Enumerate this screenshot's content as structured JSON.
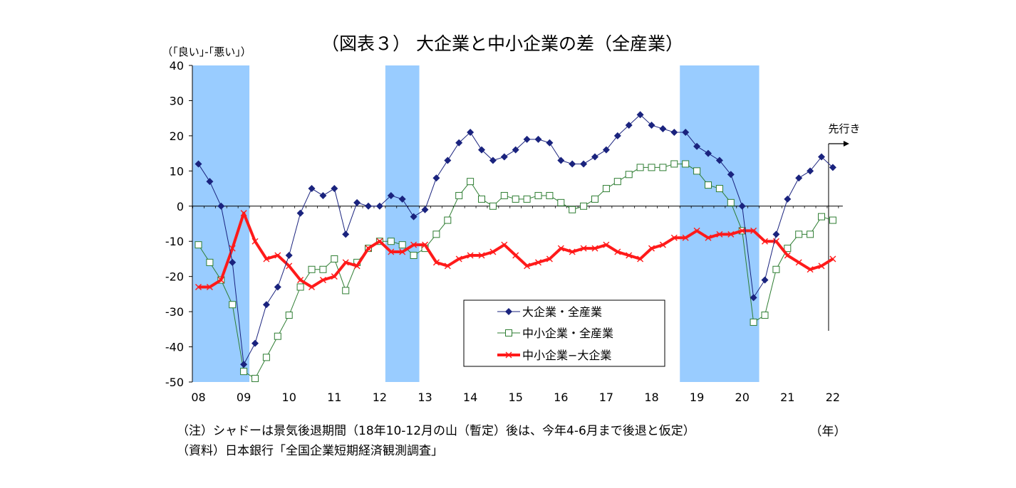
{
  "chart_data": {
    "type": "line",
    "title": "（図表３） 大企業と中小企業の差（全産業）",
    "ylabel": "（｢良い｣-｢悪い｣）",
    "xlabel": "（年）",
    "ylim": [
      -50,
      40
    ],
    "yticks": [
      40,
      30,
      20,
      10,
      0,
      -10,
      -20,
      -30,
      -40,
      -50
    ],
    "x_tick_labels": [
      "08",
      "09",
      "10",
      "11",
      "12",
      "13",
      "14",
      "15",
      "16",
      "17",
      "18",
      "19",
      "20",
      "21",
      "22"
    ],
    "x_start_year": 2008,
    "quarters_per_year": 4,
    "recession_shading": [
      {
        "start": "2008-Q1",
        "end": "2009-Q1"
      },
      {
        "start": "2012-Q2",
        "end": "2012-Q4"
      },
      {
        "start": "2018-Q4",
        "end": "2020-Q2"
      }
    ],
    "forecast_label": "先行き",
    "grid": false,
    "legend_position": "lower-center",
    "series": [
      {
        "name": "大企業・全産業",
        "color": "#1a237e",
        "marker": "diamond",
        "values": [
          12,
          7,
          0,
          -16,
          -45,
          -39,
          -28,
          -23,
          -14,
          -2,
          5,
          3,
          5,
          -8,
          1,
          0,
          0,
          3,
          2,
          -3,
          -1,
          8,
          13,
          18,
          21,
          16,
          13,
          14,
          16,
          19,
          19,
          18,
          13,
          12,
          12,
          14,
          16,
          20,
          23,
          26,
          23,
          22,
          21,
          21,
          17,
          15,
          13,
          9,
          0,
          -26,
          -21,
          -8,
          2,
          8,
          10,
          14,
          11
        ]
      },
      {
        "name": "中小企業・全産業",
        "color": "#2e7d32",
        "marker": "open-square",
        "values": [
          -11,
          -16,
          -21,
          -28,
          -47,
          -49,
          -43,
          -37,
          -31,
          -23,
          -18,
          -18,
          -15,
          -24,
          -16,
          -12,
          -10,
          -10,
          -11,
          -14,
          -12,
          -8,
          -4,
          3,
          7,
          2,
          0,
          3,
          2,
          2,
          3,
          3,
          1,
          -1,
          0,
          2,
          5,
          7,
          9,
          11,
          11,
          11,
          12,
          12,
          10,
          6,
          5,
          1,
          -7,
          -33,
          -31,
          -18,
          -12,
          -8,
          -8,
          -3,
          -4
        ]
      },
      {
        "name": "中小企業−大企業",
        "color": "#ff1a1a",
        "marker": "x",
        "values": [
          -23,
          -23,
          -21,
          -12,
          -2,
          -10,
          -15,
          -14,
          -17,
          -21,
          -23,
          -21,
          -20,
          -16,
          -17,
          -12,
          -10,
          -13,
          -13,
          -11,
          -11,
          -16,
          -17,
          -15,
          -14,
          -14,
          -13,
          -11,
          -14,
          -17,
          -16,
          -15,
          -12,
          -13,
          -12,
          -12,
          -11,
          -13,
          -14,
          -15,
          -12,
          -11,
          -9,
          -9,
          -7,
          -9,
          -8,
          -8,
          -7,
          -7,
          -10,
          -10,
          -14,
          -16,
          -18,
          -17,
          -15
        ]
      }
    ]
  },
  "notes": {
    "line1": "（注）シャドーは景気後退期間（18年10-12月の山（暫定）後は、今年4-6月まで後退と仮定）",
    "line2": "（資料）日本銀行「全国企業短期経済観測調査」"
  }
}
